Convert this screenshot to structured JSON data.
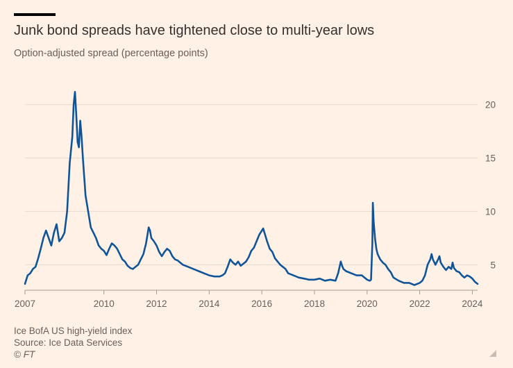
{
  "header": {
    "title": "Junk bond spreads have tightened close to multi-year lows",
    "subtitle": "Option-adjusted spread (percentage points)"
  },
  "footer": {
    "line1": "Ice BofA US high-yield index",
    "line2": "Source: Ice Data Services",
    "copyright": "© FT"
  },
  "colors": {
    "background": "#fff1e5",
    "line": "#0f5499",
    "grid": "#e6d9ce",
    "text": "#33302e",
    "muted": "#66605c"
  },
  "chart_data": {
    "type": "line",
    "title": "Junk bond spreads have tightened close to multi-year lows",
    "subtitle": "Option-adjusted spread (percentage points)",
    "xlabel": "",
    "ylabel": "",
    "xlim": [
      2007.0,
      2024.2
    ],
    "ylim": [
      3,
      22
    ],
    "y_ticks": [
      5,
      10,
      15,
      20
    ],
    "x_ticks": [
      "2007",
      "2010",
      "2012",
      "2014",
      "2016",
      "2018",
      "2020",
      "2022",
      "2024"
    ],
    "grid": "horizontal",
    "y_axis_position": "right",
    "series": [
      {
        "name": "",
        "color": "#0f5499",
        "x": [
          2007.0,
          2007.1,
          2007.2,
          2007.3,
          2007.4,
          2007.5,
          2007.6,
          2007.7,
          2007.8,
          2007.9,
          2008.0,
          2008.1,
          2008.2,
          2008.3,
          2008.4,
          2008.5,
          2008.6,
          2008.7,
          2008.8,
          2008.85,
          2008.9,
          2008.95,
          2009.0,
          2009.05,
          2009.1,
          2009.15,
          2009.2,
          2009.3,
          2009.4,
          2009.5,
          2009.6,
          2009.7,
          2009.8,
          2009.9,
          2010.0,
          2010.1,
          2010.2,
          2010.3,
          2010.4,
          2010.5,
          2010.6,
          2010.7,
          2010.8,
          2010.9,
          2011.0,
          2011.1,
          2011.2,
          2011.3,
          2011.4,
          2011.5,
          2011.6,
          2011.7,
          2011.75,
          2011.8,
          2011.9,
          2012.0,
          2012.1,
          2012.2,
          2012.3,
          2012.4,
          2012.5,
          2012.6,
          2012.7,
          2012.8,
          2012.9,
          2013.0,
          2013.2,
          2013.4,
          2013.5,
          2013.6,
          2013.8,
          2014.0,
          2014.2,
          2014.4,
          2014.5,
          2014.6,
          2014.7,
          2014.8,
          2014.9,
          2015.0,
          2015.1,
          2015.2,
          2015.3,
          2015.4,
          2015.5,
          2015.6,
          2015.7,
          2015.8,
          2015.9,
          2016.0,
          2016.05,
          2016.1,
          2016.2,
          2016.3,
          2016.4,
          2016.5,
          2016.6,
          2016.7,
          2016.8,
          2016.9,
          2017.0,
          2017.2,
          2017.4,
          2017.6,
          2017.8,
          2018.0,
          2018.2,
          2018.4,
          2018.6,
          2018.8,
          2018.9,
          2019.0,
          2019.05,
          2019.1,
          2019.2,
          2019.4,
          2019.6,
          2019.8,
          2020.0,
          2020.1,
          2020.15,
          2020.2,
          2020.22,
          2020.25,
          2020.3,
          2020.35,
          2020.4,
          2020.5,
          2020.6,
          2020.7,
          2020.8,
          2020.9,
          2021.0,
          2021.2,
          2021.4,
          2021.6,
          2021.8,
          2022.0,
          2022.1,
          2022.2,
          2022.3,
          2022.4,
          2022.45,
          2022.5,
          2022.6,
          2022.7,
          2022.75,
          2022.8,
          2022.9,
          2023.0,
          2023.1,
          2023.2,
          2023.25,
          2023.3,
          2023.4,
          2023.5,
          2023.6,
          2023.7,
          2023.8,
          2023.9,
          2024.0,
          2024.1,
          2024.2
        ],
        "y": [
          3.2,
          4.0,
          4.2,
          4.6,
          4.8,
          5.6,
          6.5,
          7.5,
          8.2,
          7.5,
          6.8,
          8.0,
          8.8,
          7.2,
          7.5,
          8.0,
          10.0,
          14.5,
          17.0,
          20.0,
          21.2,
          19.0,
          16.5,
          16.0,
          18.5,
          17.0,
          15.0,
          11.5,
          10.0,
          8.5,
          8.0,
          7.5,
          6.8,
          6.5,
          6.3,
          5.9,
          6.5,
          7.0,
          6.8,
          6.5,
          6.0,
          5.5,
          5.3,
          4.9,
          4.7,
          4.6,
          4.8,
          5.0,
          5.5,
          6.0,
          7.0,
          8.5,
          8.2,
          7.5,
          7.2,
          6.8,
          6.2,
          5.8,
          6.2,
          6.5,
          6.3,
          5.8,
          5.5,
          5.4,
          5.2,
          5.0,
          4.8,
          4.6,
          4.5,
          4.4,
          4.2,
          4.0,
          3.9,
          3.9,
          4.0,
          4.2,
          4.8,
          5.5,
          5.2,
          5.0,
          5.3,
          4.9,
          5.1,
          5.3,
          5.7,
          6.3,
          6.6,
          7.2,
          7.8,
          8.2,
          8.4,
          8.0,
          7.2,
          6.5,
          6.2,
          5.6,
          5.3,
          5.0,
          4.8,
          4.6,
          4.2,
          4.0,
          3.8,
          3.7,
          3.6,
          3.6,
          3.7,
          3.5,
          3.6,
          3.5,
          4.2,
          5.3,
          4.9,
          4.6,
          4.4,
          4.2,
          4.0,
          4.0,
          3.6,
          3.5,
          3.6,
          7.0,
          10.8,
          9.0,
          7.5,
          6.5,
          6.0,
          5.5,
          5.2,
          5.0,
          4.6,
          4.3,
          3.8,
          3.5,
          3.3,
          3.3,
          3.1,
          3.3,
          3.5,
          4.0,
          5.0,
          5.5,
          6.0,
          5.5,
          5.0,
          5.5,
          5.8,
          5.2,
          4.8,
          4.5,
          4.8,
          4.6,
          5.2,
          4.7,
          4.4,
          4.3,
          4.0,
          3.8,
          4.0,
          3.9,
          3.7,
          3.4,
          3.2
        ]
      }
    ]
  }
}
